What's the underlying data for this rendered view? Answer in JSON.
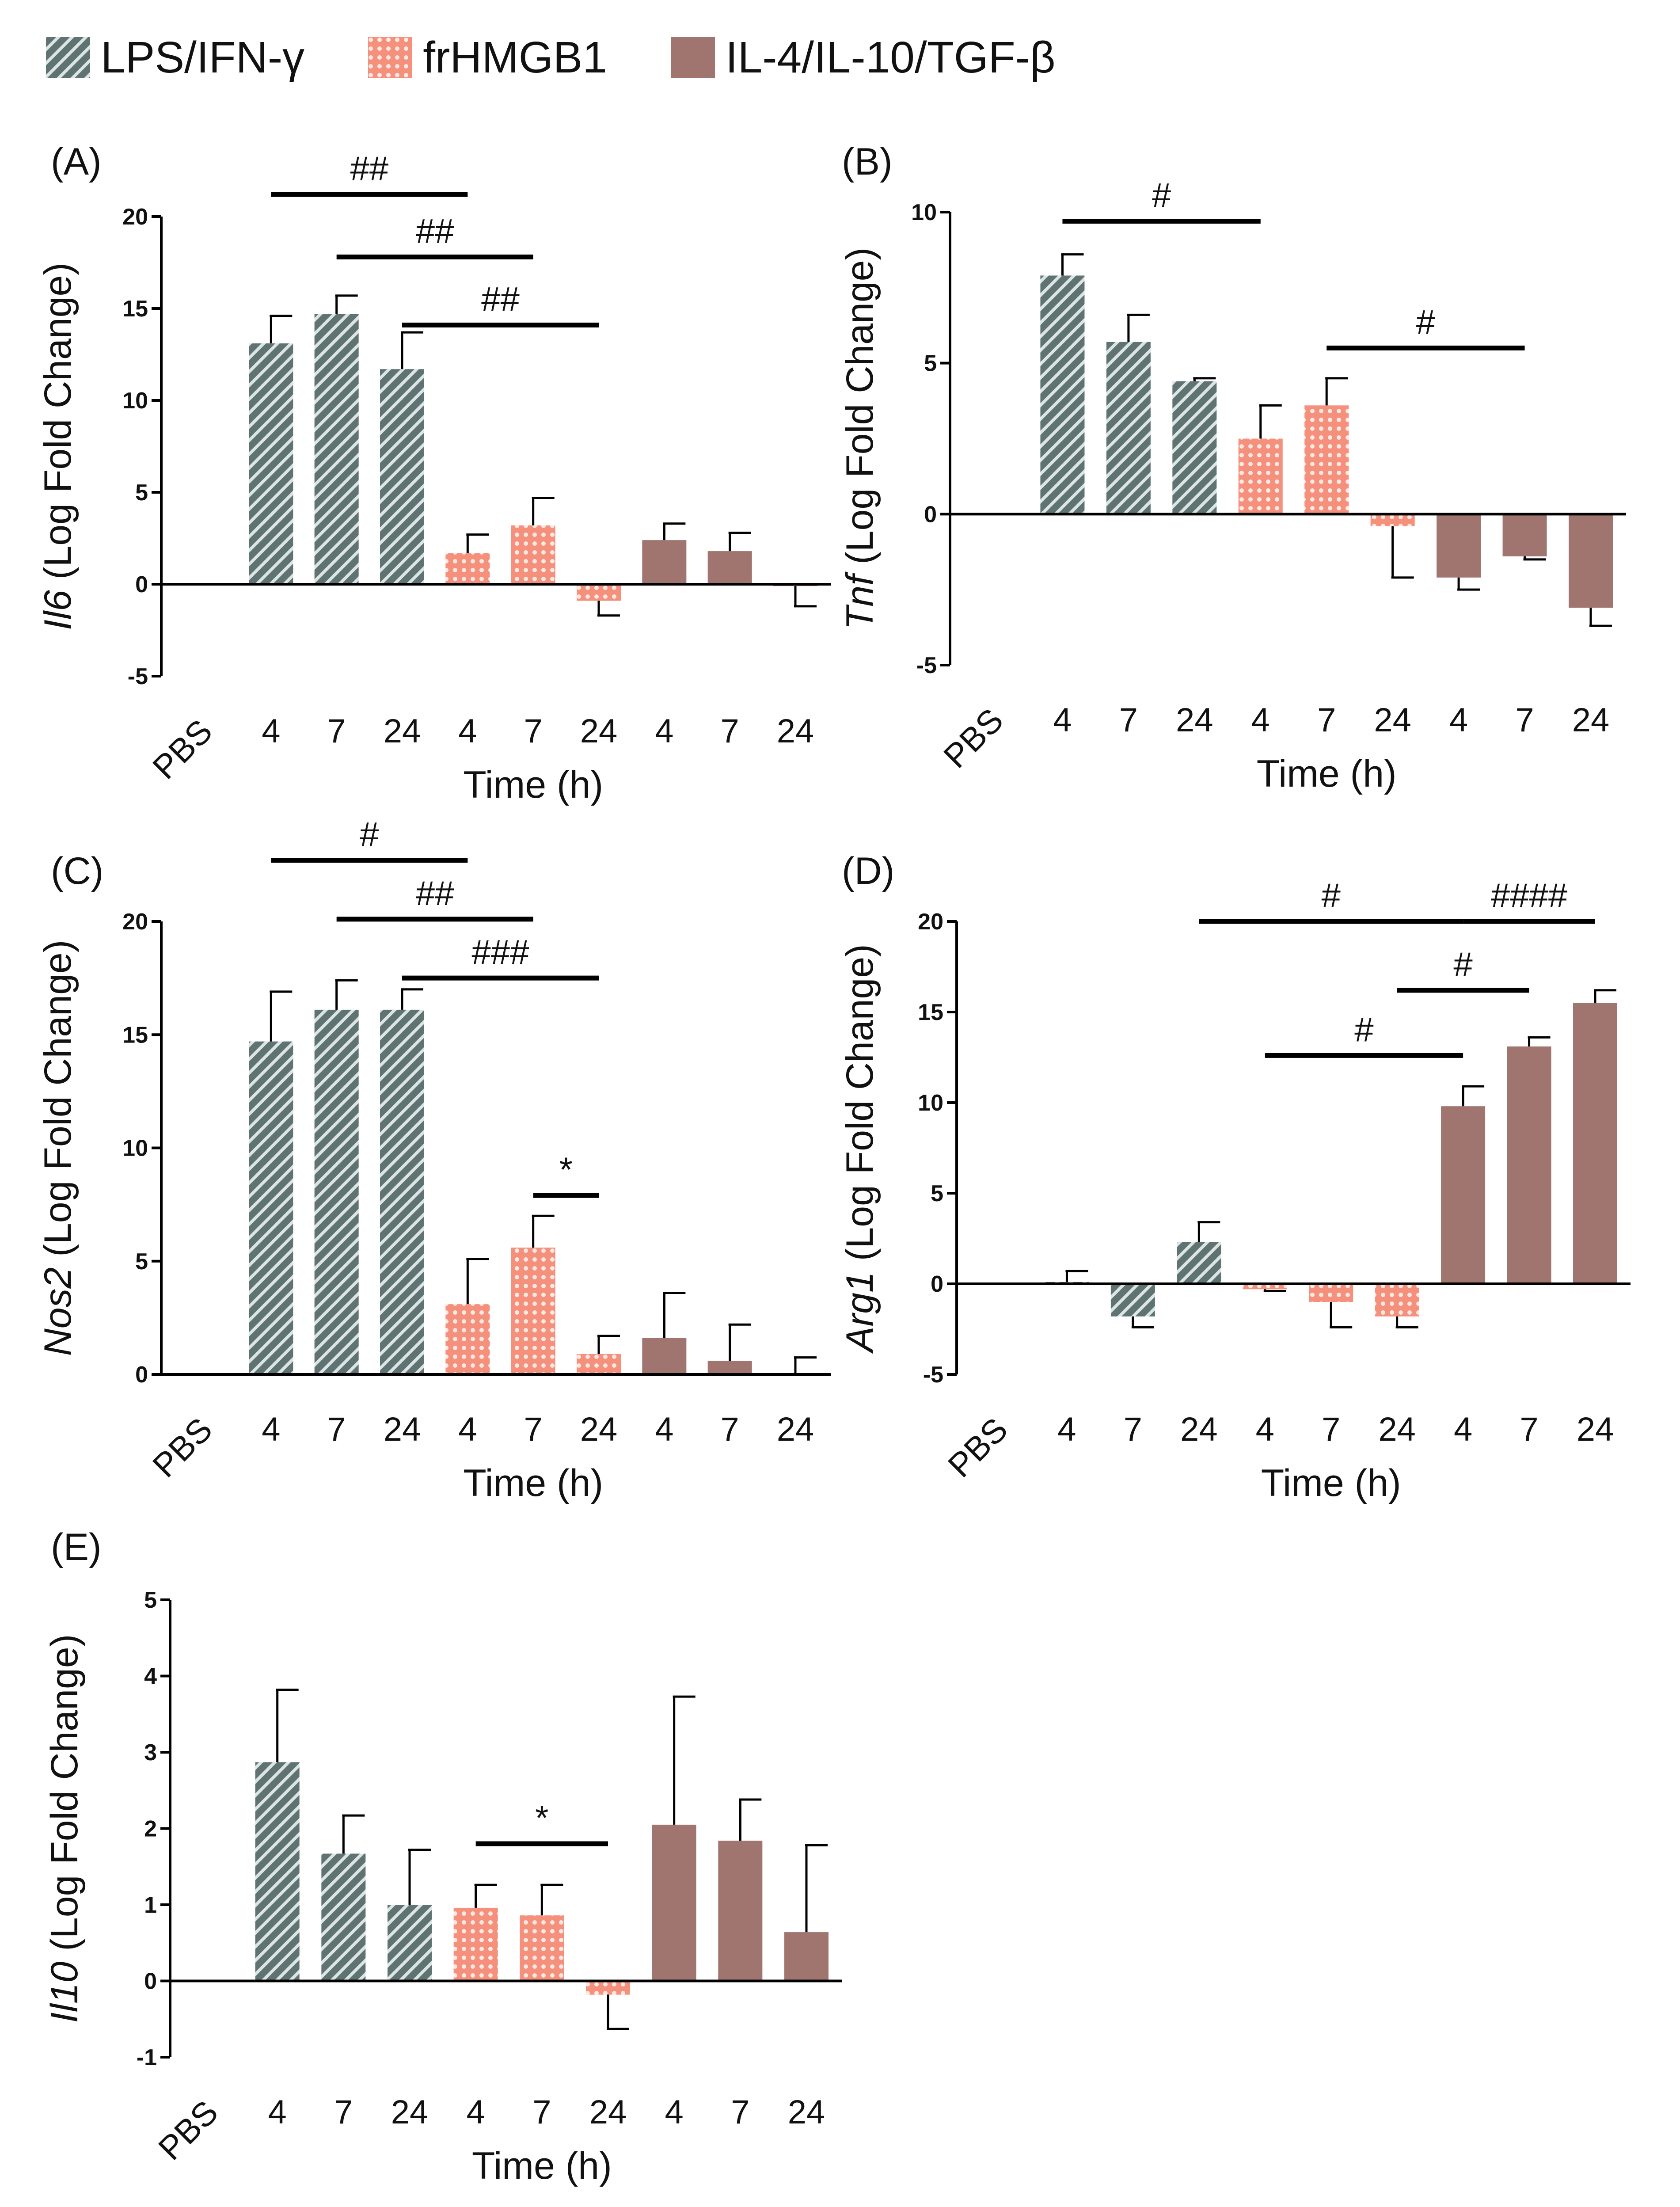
{
  "legend": [
    {
      "label": "LPS/IFN-γ",
      "pattern": "hatch"
    },
    {
      "label": "frHMGB1",
      "pattern": "mesh"
    },
    {
      "label": "IL-4/IL-10/TGF-β",
      "pattern": "solid"
    }
  ],
  "colors": {
    "lps": "#5f7373",
    "lps_stripe": "#dce4e4",
    "hmgb1": "#f5907c",
    "hmgb1_light": "#ffe9e2",
    "il4": "#a07570",
    "axis": "#000000"
  },
  "chart_data": [
    {
      "panel": "(A)",
      "type": "bar",
      "gene": "Il6",
      "ylabel_suffix": " (Log Fold Change)",
      "xlabel": "Time (h)",
      "categories": [
        "PBS",
        "4",
        "7",
        "24",
        "4",
        "7",
        "24",
        "4",
        "7",
        "24"
      ],
      "ylim": [
        -5,
        20
      ],
      "yticks": [
        -5,
        0,
        5,
        10,
        15,
        20
      ],
      "values": [
        0,
        13.1,
        14.7,
        11.7,
        1.7,
        3.2,
        -0.9,
        2.4,
        1.8,
        -0.1
      ],
      "errors": [
        0,
        1.5,
        1.0,
        2.0,
        1.0,
        1.5,
        0.8,
        0.9,
        1.0,
        1.1
      ],
      "significance": [
        {
          "label": "##",
          "from": 1,
          "to": 4,
          "y": 21.2
        },
        {
          "label": "##",
          "from": 2,
          "to": 5,
          "y": 17.8
        },
        {
          "label": "##",
          "from": 3,
          "to": 6,
          "y": 14.1
        }
      ]
    },
    {
      "panel": "(B)",
      "type": "bar",
      "gene": "Tnf",
      "ylabel_suffix": " (Log Fold Change)",
      "xlabel": "Time (h)",
      "categories": [
        "PBS",
        "4",
        "7",
        "24",
        "4",
        "7",
        "24",
        "4",
        "7",
        "24"
      ],
      "ylim": [
        -5,
        10
      ],
      "yticks": [
        -5,
        0,
        5,
        10
      ],
      "values": [
        0,
        7.9,
        5.7,
        4.4,
        2.5,
        3.6,
        -0.4,
        -2.1,
        -1.4,
        -3.1
      ],
      "errors": [
        0,
        0.7,
        0.9,
        0.1,
        1.1,
        0.9,
        1.7,
        0.4,
        0.1,
        0.6
      ],
      "significance": [
        {
          "label": "#",
          "from": 1,
          "to": 4,
          "y": 9.7
        },
        {
          "label": "#",
          "from": 5,
          "to": 8,
          "y": 5.5
        }
      ]
    },
    {
      "panel": "(C)",
      "type": "bar",
      "gene": "Nos2",
      "ylabel_suffix": " (Log Fold Change)",
      "xlabel": "Time (h)",
      "categories": [
        "PBS",
        "4",
        "7",
        "24",
        "4",
        "7",
        "24",
        "4",
        "7",
        "24"
      ],
      "ylim": [
        0,
        20
      ],
      "yticks": [
        0,
        5,
        10,
        15,
        20
      ],
      "values": [
        0,
        14.7,
        16.1,
        16.1,
        3.1,
        5.6,
        0.9,
        1.6,
        0.6,
        0.05
      ],
      "errors": [
        0,
        2.2,
        1.3,
        0.9,
        2.0,
        1.4,
        0.8,
        2.0,
        1.6,
        0.7
      ],
      "significance": [
        {
          "label": "#",
          "from": 1,
          "to": 4,
          "y": 22.7
        },
        {
          "label": "##",
          "from": 2,
          "to": 5,
          "y": 20.1
        },
        {
          "label": "###",
          "from": 3,
          "to": 6,
          "y": 17.5
        },
        {
          "label": "*",
          "from": 5,
          "to": 6,
          "y": 7.9
        }
      ]
    },
    {
      "panel": "(D)",
      "type": "bar",
      "gene": "Arg1",
      "ylabel_suffix": " (Log Fold Change)",
      "xlabel": "Time (h)",
      "categories": [
        "PBS",
        "4",
        "7",
        "24",
        "4",
        "7",
        "24",
        "4",
        "7",
        "24"
      ],
      "ylim": [
        -5,
        20
      ],
      "yticks": [
        -5,
        0,
        5,
        10,
        15,
        20
      ],
      "values": [
        0,
        0.1,
        -1.8,
        2.3,
        -0.3,
        -1.0,
        -1.8,
        9.8,
        13.1,
        15.5
      ],
      "errors": [
        0,
        0.6,
        0.6,
        1.1,
        0.1,
        1.4,
        0.6,
        1.1,
        0.5,
        0.7
      ],
      "significance": [
        {
          "label": "#",
          "from": 3,
          "to": 7,
          "y": 20.0
        },
        {
          "label": "####",
          "from": 7,
          "to": 9,
          "y": 20.0
        },
        {
          "label": "#",
          "from": 6,
          "to": 8,
          "y": 16.2
        },
        {
          "label": "#",
          "from": 4,
          "to": 7,
          "y": 12.6
        }
      ]
    },
    {
      "panel": "(E)",
      "type": "bar",
      "gene": "Il10",
      "ylabel_suffix": " (Log Fold Change)",
      "xlabel": "Time (h)",
      "categories": [
        "PBS",
        "4",
        "7",
        "24",
        "4",
        "7",
        "24",
        "4",
        "7",
        "24"
      ],
      "ylim": [
        -1,
        5
      ],
      "yticks": [
        -1,
        0,
        1,
        2,
        3,
        4,
        5
      ],
      "values": [
        0,
        2.87,
        1.67,
        1.0,
        0.96,
        0.86,
        -0.18,
        2.05,
        1.84,
        0.64
      ],
      "errors": [
        0,
        0.95,
        0.5,
        0.72,
        0.3,
        0.4,
        0.45,
        1.68,
        0.54,
        1.14
      ],
      "significance": [
        {
          "label": "*",
          "from": 4,
          "to": 6,
          "y": 1.8
        }
      ]
    }
  ]
}
